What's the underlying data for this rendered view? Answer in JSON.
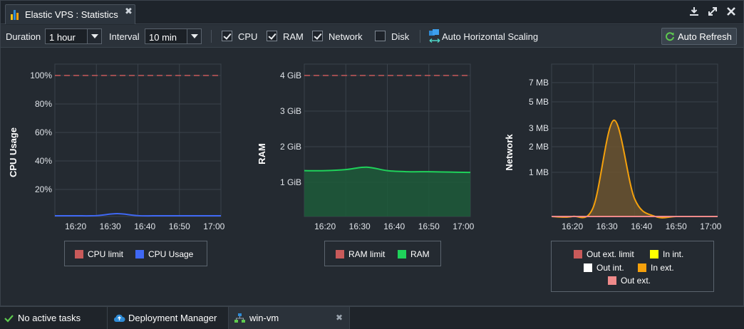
{
  "window": {
    "title": "Elastic VPS : Statistics",
    "close_glyph": "✖"
  },
  "toolbar": {
    "duration_label": "Duration",
    "duration_value": "1 hour",
    "interval_label": "Interval",
    "interval_value": "10 min",
    "checkboxes": [
      {
        "label": "CPU",
        "checked": true
      },
      {
        "label": "RAM",
        "checked": true
      },
      {
        "label": "Network",
        "checked": true
      },
      {
        "label": "Disk",
        "checked": false
      }
    ],
    "auto_scaling_label": "Auto Horizontal Scaling",
    "auto_refresh_label": "Auto Refresh"
  },
  "chart_data": [
    {
      "type": "line",
      "ylabel": "CPU Usage",
      "x": [
        "16:14",
        "16:20",
        "16:26",
        "16:32",
        "16:38",
        "16:44",
        "16:50",
        "16:56",
        "17:02"
      ],
      "xticks": [
        "16:20",
        "16:30",
        "16:40",
        "16:50",
        "17:00"
      ],
      "yticks": [
        "20%",
        "40%",
        "60%",
        "80%",
        "100%"
      ],
      "ylim": [
        0,
        100
      ],
      "series": [
        {
          "name": "CPU limit",
          "color": "#c85a5a",
          "style": "dashed",
          "values": [
            100,
            100,
            100,
            100,
            100,
            100,
            100,
            100,
            100
          ]
        },
        {
          "name": "CPU Usage",
          "color": "#3f68f4",
          "values": [
            0.5,
            0.5,
            0.6,
            2,
            0.6,
            0.5,
            0.5,
            0.5,
            0.5
          ]
        }
      ]
    },
    {
      "type": "area",
      "ylabel": "RAM",
      "x": [
        "16:14",
        "16:20",
        "16:26",
        "16:32",
        "16:38",
        "16:44",
        "16:50",
        "16:56",
        "17:02"
      ],
      "xticks": [
        "16:20",
        "16:30",
        "16:40",
        "16:50",
        "17:00"
      ],
      "yticks": [
        "1 GiB",
        "2 GiB",
        "3 GiB",
        "4 GiB"
      ],
      "ylim": [
        0,
        4
      ],
      "series": [
        {
          "name": "RAM limit",
          "color": "#c85a5a",
          "style": "dashed",
          "values": [
            4,
            4,
            4,
            4,
            4,
            4,
            4,
            4,
            4
          ]
        },
        {
          "name": "RAM",
          "color": "#1fd15a",
          "values": [
            1.3,
            1.3,
            1.33,
            1.4,
            1.3,
            1.27,
            1.27,
            1.26,
            1.25
          ]
        }
      ]
    },
    {
      "type": "area",
      "ylabel": "Network",
      "x": [
        "16:14",
        "16:20",
        "16:26",
        "16:32",
        "16:38",
        "16:44",
        "16:50",
        "16:56",
        "17:02"
      ],
      "xticks": [
        "16:20",
        "16:30",
        "16:40",
        "16:50",
        "17:00"
      ],
      "yticks": [
        "1 MB",
        "2 MB",
        "3 MB",
        "5 MB",
        "7 MB"
      ],
      "series": [
        {
          "name": "Out ext. limit",
          "color": "#c85a5a",
          "values": [
            0,
            0,
            0,
            0,
            0,
            0,
            0,
            0,
            0
          ]
        },
        {
          "name": "In int.",
          "color": "#ffff00",
          "values": [
            0,
            0,
            0,
            0,
            0,
            0,
            0,
            0,
            0
          ]
        },
        {
          "name": "Out int.",
          "color": "#ffffff",
          "values": [
            0,
            0,
            0,
            0,
            0,
            0,
            0,
            0,
            0
          ]
        },
        {
          "name": "In ext.",
          "color": "#f5a10c",
          "values": [
            0,
            0,
            0.2,
            3.6,
            0.4,
            0,
            0,
            0,
            0
          ]
        },
        {
          "name": "Out ext.",
          "color": "#ef8a8a",
          "values": [
            0,
            0,
            0,
            0,
            0,
            0,
            0,
            0,
            0
          ]
        }
      ]
    }
  ],
  "statusbar": {
    "tasks_label": "No active tasks",
    "deployment_label": "Deployment Manager",
    "vm_label": "win-vm",
    "close_glyph": "✖"
  },
  "colors": {
    "background": "#242a31",
    "grid": "#3a424b",
    "accent_blue": "#2f8bd6"
  },
  "icons": [
    "statistics-icon",
    "download-icon",
    "expand-icon",
    "close-icon",
    "auto-scaling-icon",
    "refresh-icon",
    "check-icon",
    "cloud-icon",
    "network-node-icon"
  ]
}
